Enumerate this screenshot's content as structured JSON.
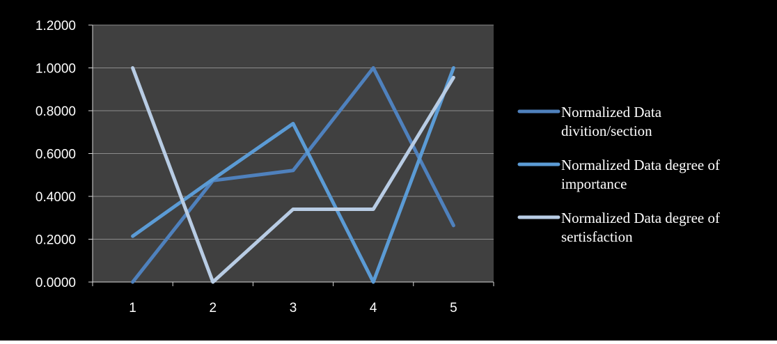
{
  "chart_data": {
    "type": "line",
    "title": "",
    "xlabel": "",
    "ylabel": "",
    "categories": [
      "1",
      "2",
      "3",
      "4",
      "5"
    ],
    "ylim": [
      0,
      1.2
    ],
    "yticks": [
      "0.0000",
      "0.2000",
      "0.4000",
      "0.6000",
      "0.8000",
      "1.0000",
      "1.2000"
    ],
    "grid": true,
    "legend_position": "right",
    "series": [
      {
        "name_lines": [
          "Normalized Data",
          "divition/section"
        ],
        "values": [
          0.0,
          0.474,
          0.521,
          1.0,
          0.264
        ],
        "color": "#4f81bd"
      },
      {
        "name_lines": [
          "Normalized Data degree of",
          "importance"
        ],
        "values": [
          0.214,
          0.48,
          0.74,
          0.0,
          1.0
        ],
        "color": "#5b9bd5"
      },
      {
        "name_lines": [
          "Normalized Data degree of",
          "sertisfaction"
        ],
        "values": [
          1.0,
          0.0,
          0.34,
          0.34,
          0.955
        ],
        "color": "#b8cce4"
      }
    ],
    "colors": {
      "outer_background": "#000000",
      "plot_background": "#404040",
      "gridline": "#8c8c8c",
      "axis": "#d9d9d9",
      "text": "#ffffff"
    }
  }
}
